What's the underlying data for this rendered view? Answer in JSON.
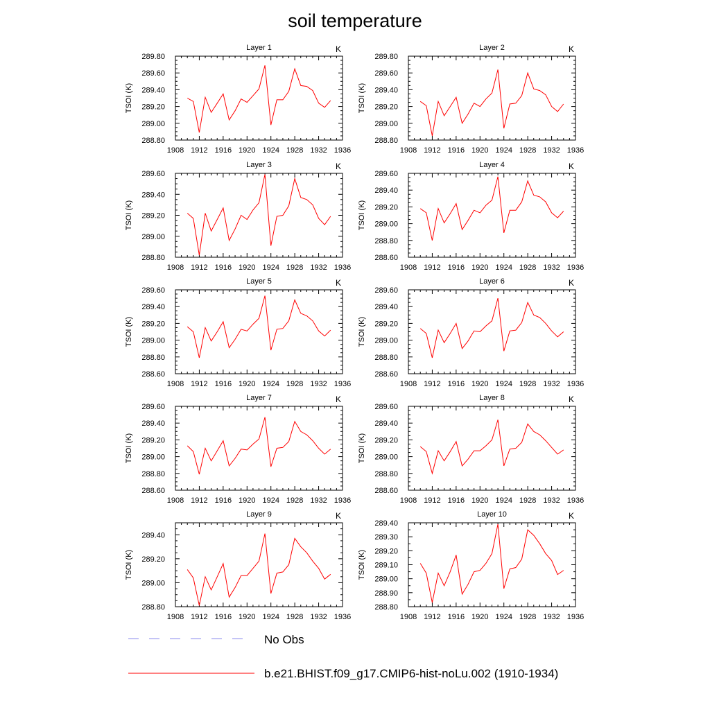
{
  "title": "soil temperature",
  "legend": {
    "items": [
      {
        "label": "No Obs",
        "style": "dashed",
        "color": "#8888ee"
      },
      {
        "label": "b.e21.BHIST.f09_g17.CMIP6-hist-noLu.002 (1910-1934)",
        "style": "solid",
        "color": "#ff0000"
      }
    ]
  },
  "colors": {
    "series": "#ff0000",
    "obs": "#8888ee",
    "axis": "#000000"
  },
  "chart_data": [
    {
      "type": "line",
      "title": "Layer 1",
      "unit": "K",
      "xlabel": "",
      "ylabel": "TSOI  (K)",
      "xlim": [
        1908,
        1936
      ],
      "ylim": [
        288.8,
        289.8
      ],
      "xticks": [
        1908,
        1912,
        1916,
        1920,
        1924,
        1928,
        1932,
        1936
      ],
      "yticks": [
        "288.80",
        "289.00",
        "289.20",
        "289.40",
        "289.60",
        "289.80"
      ],
      "x": [
        1910,
        1911,
        1912,
        1913,
        1914,
        1915,
        1916,
        1917,
        1918,
        1919,
        1920,
        1921,
        1922,
        1923,
        1924,
        1925,
        1926,
        1927,
        1928,
        1929,
        1930,
        1931,
        1932,
        1933,
        1934
      ],
      "series": [
        {
          "name": "b.e21.BHIST.f09_g17.CMIP6-hist-noLu.002 (1910-1934)",
          "values": [
            289.3,
            289.26,
            288.89,
            289.31,
            289.13,
            289.24,
            289.35,
            289.04,
            289.15,
            289.29,
            289.25,
            289.33,
            289.41,
            289.69,
            288.98,
            289.28,
            289.28,
            289.38,
            289.65,
            289.45,
            289.44,
            289.39,
            289.24,
            289.19,
            289.27
          ]
        }
      ]
    },
    {
      "type": "line",
      "title": "Layer 2",
      "unit": "K",
      "xlabel": "",
      "ylabel": "TSOI  (K)",
      "xlim": [
        1908,
        1936
      ],
      "ylim": [
        288.8,
        289.8
      ],
      "xticks": [
        1908,
        1912,
        1916,
        1920,
        1924,
        1928,
        1932,
        1936
      ],
      "yticks": [
        "288.80",
        "289.00",
        "289.20",
        "289.40",
        "289.60",
        "289.80"
      ],
      "x": [
        1910,
        1911,
        1912,
        1913,
        1914,
        1915,
        1916,
        1917,
        1918,
        1919,
        1920,
        1921,
        1922,
        1923,
        1924,
        1925,
        1926,
        1927,
        1928,
        1929,
        1930,
        1931,
        1932,
        1933,
        1934
      ],
      "series": [
        {
          "name": "b.e21.BHIST.f09_g17.CMIP6-hist-noLu.002 (1910-1934)",
          "values": [
            289.26,
            289.21,
            288.85,
            289.26,
            289.09,
            289.2,
            289.31,
            289.0,
            289.11,
            289.24,
            289.2,
            289.29,
            289.36,
            289.64,
            288.94,
            289.23,
            289.24,
            289.33,
            289.6,
            289.41,
            289.39,
            289.34,
            289.2,
            289.14,
            289.23
          ]
        }
      ]
    },
    {
      "type": "line",
      "title": "Layer 3",
      "unit": "K",
      "xlabel": "",
      "ylabel": "TSOI  (K)",
      "xlim": [
        1908,
        1936
      ],
      "ylim": [
        288.8,
        289.6
      ],
      "xticks": [
        1908,
        1912,
        1916,
        1920,
        1924,
        1928,
        1932,
        1936
      ],
      "yticks": [
        "288.80",
        "289.00",
        "289.20",
        "289.40",
        "289.60"
      ],
      "x": [
        1910,
        1911,
        1912,
        1913,
        1914,
        1915,
        1916,
        1917,
        1918,
        1919,
        1920,
        1921,
        1922,
        1923,
        1924,
        1925,
        1926,
        1927,
        1928,
        1929,
        1930,
        1931,
        1932,
        1933,
        1934
      ],
      "series": [
        {
          "name": "b.e21.BHIST.f09_g17.CMIP6-hist-noLu.002 (1910-1934)",
          "values": [
            289.22,
            289.17,
            288.82,
            289.22,
            289.05,
            289.16,
            289.27,
            288.96,
            289.07,
            289.2,
            289.16,
            289.25,
            289.32,
            289.59,
            288.91,
            289.19,
            289.2,
            289.29,
            289.55,
            289.37,
            289.35,
            289.3,
            289.17,
            289.11,
            289.19
          ]
        }
      ]
    },
    {
      "type": "line",
      "title": "Layer 4",
      "unit": "K",
      "xlabel": "",
      "ylabel": "TSOI  (K)",
      "xlim": [
        1908,
        1936
      ],
      "ylim": [
        288.6,
        289.6
      ],
      "xticks": [
        1908,
        1912,
        1916,
        1920,
        1924,
        1928,
        1932,
        1936
      ],
      "yticks": [
        "288.60",
        "288.80",
        "289.00",
        "289.20",
        "289.40",
        "289.60"
      ],
      "x": [
        1910,
        1911,
        1912,
        1913,
        1914,
        1915,
        1916,
        1917,
        1918,
        1919,
        1920,
        1921,
        1922,
        1923,
        1924,
        1925,
        1926,
        1927,
        1928,
        1929,
        1930,
        1931,
        1932,
        1933,
        1934
      ],
      "series": [
        {
          "name": "b.e21.BHIST.f09_g17.CMIP6-hist-noLu.002 (1910-1934)",
          "values": [
            289.18,
            289.13,
            288.8,
            289.18,
            289.01,
            289.12,
            289.24,
            288.93,
            289.04,
            289.16,
            289.13,
            289.22,
            289.28,
            289.56,
            288.89,
            289.16,
            289.16,
            289.26,
            289.51,
            289.34,
            289.32,
            289.26,
            289.13,
            289.07,
            289.15
          ]
        }
      ]
    },
    {
      "type": "line",
      "title": "Layer 5",
      "unit": "K",
      "xlabel": "",
      "ylabel": "TSOI  (K)",
      "xlim": [
        1908,
        1936
      ],
      "ylim": [
        288.6,
        289.6
      ],
      "xticks": [
        1908,
        1912,
        1916,
        1920,
        1924,
        1928,
        1932,
        1936
      ],
      "yticks": [
        "288.60",
        "288.80",
        "289.00",
        "289.20",
        "289.40",
        "289.60"
      ],
      "x": [
        1910,
        1911,
        1912,
        1913,
        1914,
        1915,
        1916,
        1917,
        1918,
        1919,
        1920,
        1921,
        1922,
        1923,
        1924,
        1925,
        1926,
        1927,
        1928,
        1929,
        1930,
        1931,
        1932,
        1933,
        1934
      ],
      "series": [
        {
          "name": "b.e21.BHIST.f09_g17.CMIP6-hist-noLu.002 (1910-1934)",
          "values": [
            289.16,
            289.1,
            288.79,
            289.15,
            288.99,
            289.1,
            289.22,
            288.91,
            289.01,
            289.13,
            289.11,
            289.19,
            289.26,
            289.53,
            288.88,
            289.13,
            289.14,
            289.23,
            289.48,
            289.32,
            289.29,
            289.23,
            289.11,
            289.05,
            289.12
          ]
        }
      ]
    },
    {
      "type": "line",
      "title": "Layer 6",
      "unit": "K",
      "xlabel": "",
      "ylabel": "TSOI  (K)",
      "xlim": [
        1908,
        1936
      ],
      "ylim": [
        288.6,
        289.6
      ],
      "xticks": [
        1908,
        1912,
        1916,
        1920,
        1924,
        1928,
        1932,
        1936
      ],
      "yticks": [
        "288.60",
        "288.80",
        "289.00",
        "289.20",
        "289.40",
        "289.60"
      ],
      "x": [
        1910,
        1911,
        1912,
        1913,
        1914,
        1915,
        1916,
        1917,
        1918,
        1919,
        1920,
        1921,
        1922,
        1923,
        1924,
        1925,
        1926,
        1927,
        1928,
        1929,
        1930,
        1931,
        1932,
        1933,
        1934
      ],
      "series": [
        {
          "name": "b.e21.BHIST.f09_g17.CMIP6-hist-noLu.002 (1910-1934)",
          "values": [
            289.14,
            289.08,
            288.79,
            289.12,
            288.97,
            289.08,
            289.2,
            288.9,
            288.99,
            289.11,
            289.1,
            289.17,
            289.23,
            289.5,
            288.87,
            289.11,
            289.12,
            289.21,
            289.45,
            289.3,
            289.27,
            289.2,
            289.11,
            289.04,
            289.1
          ]
        }
      ]
    },
    {
      "type": "line",
      "title": "Layer 7",
      "unit": "K",
      "xlabel": "",
      "ylabel": "TSOI  (K)",
      "xlim": [
        1908,
        1936
      ],
      "ylim": [
        288.6,
        289.6
      ],
      "xticks": [
        1908,
        1912,
        1916,
        1920,
        1924,
        1928,
        1932,
        1936
      ],
      "yticks": [
        "288.60",
        "288.80",
        "289.00",
        "289.20",
        "289.40",
        "289.60"
      ],
      "x": [
        1910,
        1911,
        1912,
        1913,
        1914,
        1915,
        1916,
        1917,
        1918,
        1919,
        1920,
        1921,
        1922,
        1923,
        1924,
        1925,
        1926,
        1927,
        1928,
        1929,
        1930,
        1931,
        1932,
        1933,
        1934
      ],
      "series": [
        {
          "name": "b.e21.BHIST.f09_g17.CMIP6-hist-noLu.002 (1910-1934)",
          "values": [
            289.13,
            289.06,
            288.79,
            289.1,
            288.95,
            289.07,
            289.19,
            288.89,
            288.98,
            289.09,
            289.08,
            289.15,
            289.21,
            289.47,
            288.88,
            289.1,
            289.11,
            289.18,
            289.42,
            289.3,
            289.26,
            289.19,
            289.1,
            289.03,
            289.09
          ]
        }
      ]
    },
    {
      "type": "line",
      "title": "Layer 8",
      "unit": "K",
      "xlabel": "",
      "ylabel": "TSOI  (K)",
      "xlim": [
        1908,
        1936
      ],
      "ylim": [
        288.6,
        289.6
      ],
      "xticks": [
        1908,
        1912,
        1916,
        1920,
        1924,
        1928,
        1932,
        1936
      ],
      "yticks": [
        "288.60",
        "288.80",
        "289.00",
        "289.20",
        "289.40",
        "289.60"
      ],
      "x": [
        1910,
        1911,
        1912,
        1913,
        1914,
        1915,
        1916,
        1917,
        1918,
        1919,
        1920,
        1921,
        1922,
        1923,
        1924,
        1925,
        1926,
        1927,
        1928,
        1929,
        1930,
        1931,
        1932,
        1933,
        1934
      ],
      "series": [
        {
          "name": "b.e21.BHIST.f09_g17.CMIP6-hist-noLu.002 (1910-1934)",
          "values": [
            289.12,
            289.06,
            288.8,
            289.07,
            288.95,
            289.06,
            289.18,
            288.89,
            288.97,
            289.07,
            289.07,
            289.13,
            289.2,
            289.44,
            288.89,
            289.09,
            289.1,
            289.17,
            289.39,
            289.3,
            289.26,
            289.19,
            289.11,
            289.03,
            289.08
          ]
        }
      ]
    },
    {
      "type": "line",
      "title": "Layer 9",
      "unit": "K",
      "xlabel": "",
      "ylabel": "TSOI  (K)",
      "xlim": [
        1908,
        1936
      ],
      "ylim": [
        288.8,
        289.5
      ],
      "xticks": [
        1908,
        1912,
        1916,
        1920,
        1924,
        1928,
        1932,
        1936
      ],
      "yticks": [
        "288.80",
        "289.00",
        "289.20",
        "289.40"
      ],
      "x": [
        1910,
        1911,
        1912,
        1913,
        1914,
        1915,
        1916,
        1917,
        1918,
        1919,
        1920,
        1921,
        1922,
        1923,
        1924,
        1925,
        1926,
        1927,
        1928,
        1929,
        1930,
        1931,
        1932,
        1933,
        1934
      ],
      "series": [
        {
          "name": "b.e21.BHIST.f09_g17.CMIP6-hist-noLu.002 (1910-1934)",
          "values": [
            289.11,
            289.04,
            288.81,
            289.05,
            288.94,
            289.05,
            289.16,
            288.88,
            288.96,
            289.06,
            289.06,
            289.12,
            289.18,
            289.41,
            288.91,
            289.08,
            289.09,
            289.15,
            289.37,
            289.3,
            289.25,
            289.18,
            289.12,
            289.03,
            289.07
          ]
        }
      ]
    },
    {
      "type": "line",
      "title": "Layer 10",
      "unit": "K",
      "xlabel": "",
      "ylabel": "TSOI  (K)",
      "xlim": [
        1908,
        1936
      ],
      "ylim": [
        288.8,
        289.4
      ],
      "xticks": [
        1908,
        1912,
        1916,
        1920,
        1924,
        1928,
        1932,
        1936
      ],
      "yticks": [
        "288.80",
        "288.90",
        "289.00",
        "289.10",
        "289.20",
        "289.30",
        "289.40"
      ],
      "x": [
        1910,
        1911,
        1912,
        1913,
        1914,
        1915,
        1916,
        1917,
        1918,
        1919,
        1920,
        1921,
        1922,
        1923,
        1924,
        1925,
        1926,
        1927,
        1928,
        1929,
        1930,
        1931,
        1932,
        1933,
        1934
      ],
      "series": [
        {
          "name": "b.e21.BHIST.f09_g17.CMIP6-hist-noLu.002 (1910-1934)",
          "values": [
            289.11,
            289.04,
            288.83,
            289.04,
            288.95,
            289.05,
            289.17,
            288.89,
            288.96,
            289.05,
            289.06,
            289.11,
            289.18,
            289.39,
            288.93,
            289.07,
            289.08,
            289.14,
            289.35,
            289.31,
            289.25,
            289.18,
            289.13,
            289.03,
            289.06
          ]
        }
      ]
    }
  ]
}
